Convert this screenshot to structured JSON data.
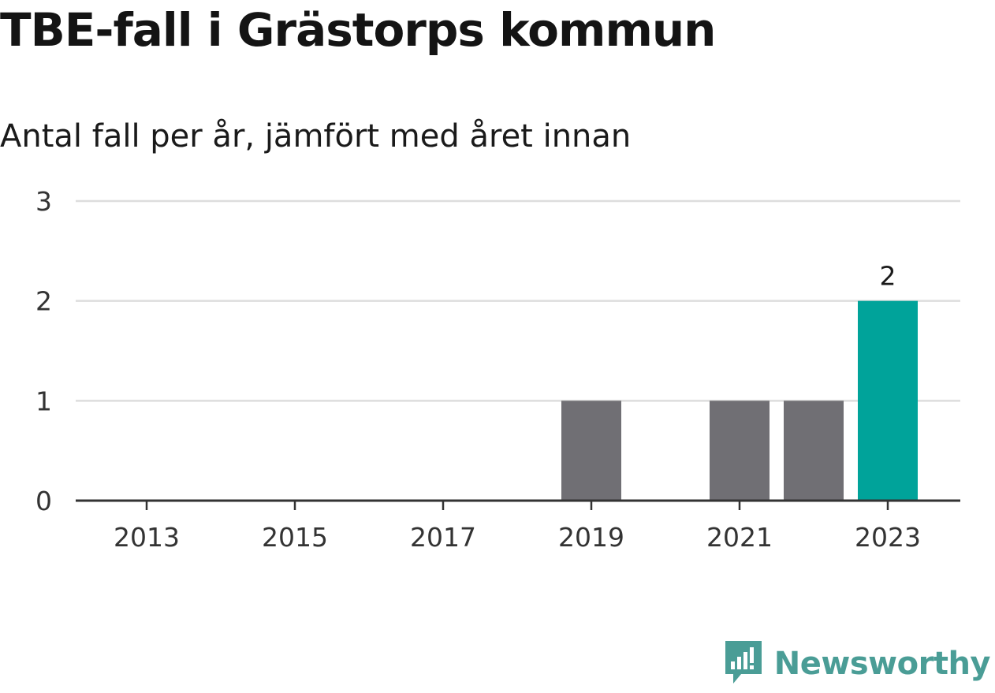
{
  "title": "TBE-fall i Grästorps kommun",
  "subtitle": "Antal fall per år, jämfört med året innan",
  "brand": {
    "name": "Newsworthy",
    "icon": "newsworthy-logo-icon",
    "color": "#4a9d96"
  },
  "colors": {
    "bar_default": "#706f74",
    "bar_highlight": "#00a39a",
    "grid": "#dddddd",
    "axis": "#333333"
  },
  "chart_data": {
    "type": "bar",
    "categories": [
      "2013",
      "2014",
      "2015",
      "2016",
      "2017",
      "2018",
      "2019",
      "2020",
      "2021",
      "2022",
      "2023"
    ],
    "values": [
      0,
      0,
      0,
      0,
      0,
      0,
      1,
      0,
      1,
      1,
      2
    ],
    "highlight_category": "2023",
    "x_tick_labels": [
      "2013",
      "2015",
      "2017",
      "2019",
      "2021",
      "2023"
    ],
    "y_ticks": [
      0,
      1,
      2,
      3
    ],
    "ylim": [
      0,
      3
    ],
    "grid": true,
    "data_labels": [
      {
        "category": "2023",
        "text": "2"
      }
    ],
    "xlabel": "",
    "ylabel": ""
  }
}
